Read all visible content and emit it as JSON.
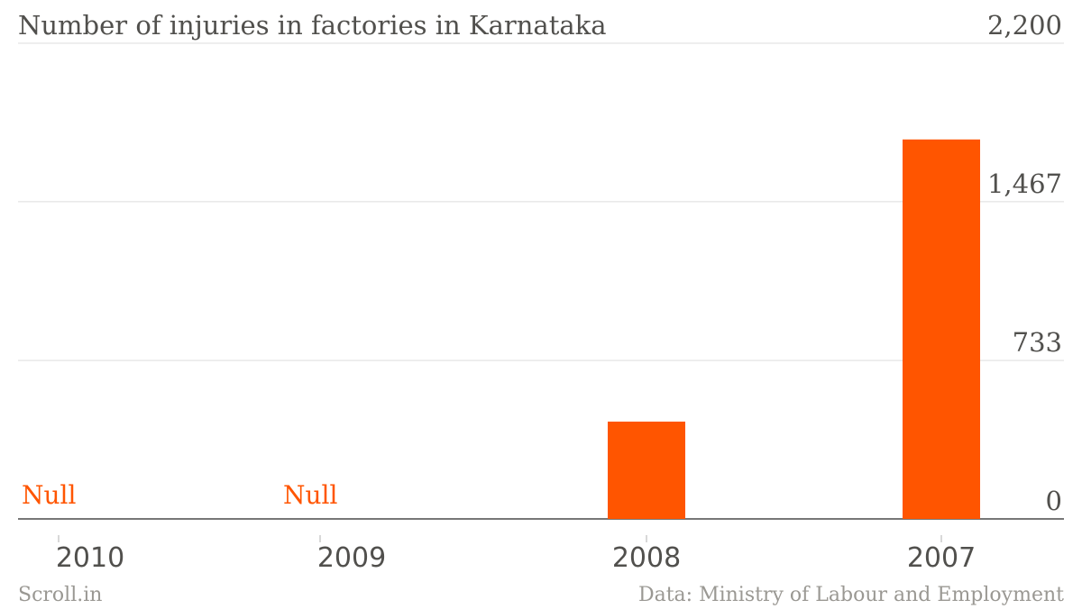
{
  "chart_data": {
    "type": "bar",
    "title": "Number of injuries in factories in Karnataka",
    "categories": [
      "2010",
      "2009",
      "2008",
      "2007"
    ],
    "values": [
      null,
      null,
      450,
      1755
    ],
    "null_label": "Null",
    "ylim": [
      0,
      2200
    ],
    "yticks": [
      "0",
      "733",
      "1,467",
      "2,200"
    ],
    "ytick_values": [
      0,
      733,
      1467,
      2200
    ],
    "grid": true,
    "bar_color": "#ff5500",
    "source": "Data: Ministry of Labour and Employment",
    "brand": "Scroll.in"
  }
}
